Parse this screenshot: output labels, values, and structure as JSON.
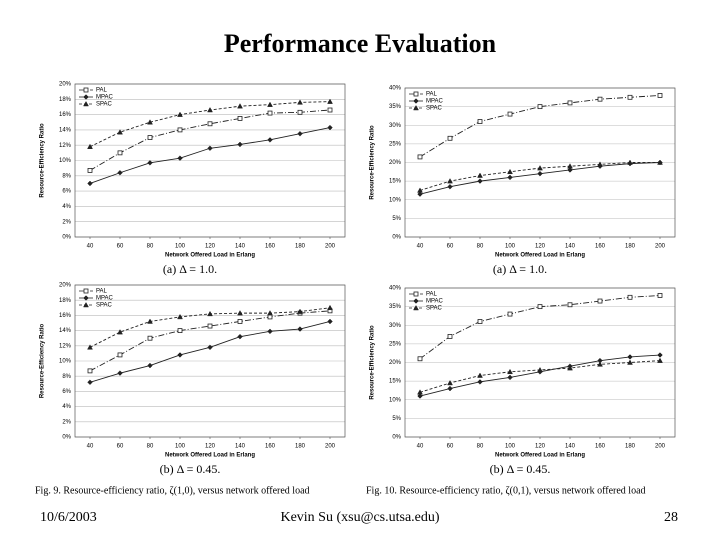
{
  "slide": {
    "title": "Performance Evaluation",
    "date": "10/6/2003",
    "author": "Kevin Su (xsu@cs.utsa.edu)",
    "page": "28"
  },
  "figures": [
    "Fig. 9.  Resource-efficiency ratio, ζ(1,0), versus network offered load",
    "Fig. 10.  Resource-efficiency ratio, ζ(0,1), versus network offered load"
  ],
  "chart_data": [
    {
      "type": "line",
      "caption": "(a) Δ = 1.0.",
      "x_label": "Network Offered Load in Erlang",
      "y_label": "Resource-Efficiency Ratio",
      "x": [
        40,
        60,
        80,
        100,
        120,
        140,
        160,
        180,
        200
      ],
      "xlim": [
        30,
        210
      ],
      "xticks": [
        40,
        60,
        80,
        100,
        120,
        140,
        160,
        180,
        200
      ],
      "ylim": [
        0,
        20
      ],
      "yticks": [
        {
          "value": 0,
          "label": "0%"
        },
        {
          "value": 2,
          "label": "2%"
        },
        {
          "value": 4,
          "label": "4%"
        },
        {
          "value": 6,
          "label": "6%"
        },
        {
          "value": 8,
          "label": "8%"
        },
        {
          "value": 10,
          "label": "10%"
        },
        {
          "value": 12,
          "label": "12%"
        },
        {
          "value": 14,
          "label": "14%"
        },
        {
          "value": 16,
          "label": "16%"
        },
        {
          "value": 18,
          "label": "18%"
        },
        {
          "value": 20,
          "label": "20%"
        }
      ],
      "grid": true,
      "legend": "upper left",
      "series": [
        {
          "name": "PAL",
          "color": "#222222",
          "marker": "square",
          "dash": "6 2 1 2",
          "values": [
            8.7,
            11,
            13,
            14,
            14.8,
            15.5,
            16.2,
            16.3,
            16.6
          ]
        },
        {
          "name": "MPAC",
          "color": "#222222",
          "marker": "diamond",
          "dash": "none",
          "values": [
            7,
            8.4,
            9.7,
            10.3,
            11.6,
            12.1,
            12.7,
            13.5,
            14.3
          ]
        },
        {
          "name": "SPAC",
          "color": "#222222",
          "marker": "triangle",
          "dash": "3 2",
          "values": [
            11.8,
            13.7,
            15,
            16,
            16.6,
            17.1,
            17.3,
            17.6,
            17.7
          ]
        }
      ]
    },
    {
      "type": "line",
      "caption": "(a) Δ = 1.0.",
      "x_label": "Network Offered Load in Erlang",
      "y_label": "Resource-Efficiency Ratio",
      "x": [
        40,
        60,
        80,
        100,
        120,
        140,
        160,
        180,
        200
      ],
      "xlim": [
        30,
        210
      ],
      "xticks": [
        40,
        60,
        80,
        100,
        120,
        140,
        160,
        180,
        200
      ],
      "ylim": [
        0,
        40
      ],
      "yticks": [
        {
          "value": 0,
          "label": "0%"
        },
        {
          "value": 5,
          "label": "5%"
        },
        {
          "value": 10,
          "label": "10%"
        },
        {
          "value": 15,
          "label": "15%"
        },
        {
          "value": 20,
          "label": "20%"
        },
        {
          "value": 25,
          "label": "25%"
        },
        {
          "value": 30,
          "label": "30%"
        },
        {
          "value": 35,
          "label": "35%"
        },
        {
          "value": 40,
          "label": "40%"
        }
      ],
      "grid": true,
      "legend": "upper left",
      "series": [
        {
          "name": "PAL",
          "color": "#222222",
          "marker": "square",
          "dash": "6 2 1 2",
          "values": [
            21.5,
            26.5,
            31,
            33,
            35,
            36,
            37,
            37.5,
            38
          ]
        },
        {
          "name": "MPAC",
          "color": "#222222",
          "marker": "diamond",
          "dash": "none",
          "values": [
            11.5,
            13.5,
            15,
            16,
            17,
            18,
            19,
            19.7,
            20
          ]
        },
        {
          "name": "SPAC",
          "color": "#222222",
          "marker": "triangle",
          "dash": "3 2",
          "values": [
            12.5,
            15,
            16.5,
            17.5,
            18.5,
            19,
            19.5,
            20,
            20
          ]
        }
      ]
    },
    {
      "type": "line",
      "caption": "(b) Δ = 0.45.",
      "x_label": "Network Offered Load in Erlang",
      "y_label": "Resource-Efficiency Ratio",
      "x": [
        40,
        60,
        80,
        100,
        120,
        140,
        160,
        180,
        200
      ],
      "xlim": [
        30,
        210
      ],
      "xticks": [
        40,
        60,
        80,
        100,
        120,
        140,
        160,
        180,
        200
      ],
      "ylim": [
        0,
        20
      ],
      "yticks": [
        {
          "value": 0,
          "label": "0%"
        },
        {
          "value": 2,
          "label": "2%"
        },
        {
          "value": 4,
          "label": "4%"
        },
        {
          "value": 6,
          "label": "6%"
        },
        {
          "value": 8,
          "label": "8%"
        },
        {
          "value": 10,
          "label": "10%"
        },
        {
          "value": 12,
          "label": "12%"
        },
        {
          "value": 14,
          "label": "14%"
        },
        {
          "value": 16,
          "label": "16%"
        },
        {
          "value": 18,
          "label": "18%"
        },
        {
          "value": 20,
          "label": "20%"
        }
      ],
      "grid": true,
      "legend": "upper left",
      "series": [
        {
          "name": "PAL",
          "color": "#222222",
          "marker": "square",
          "dash": "6 2 1 2",
          "values": [
            8.7,
            10.8,
            13,
            14,
            14.6,
            15.2,
            15.8,
            16.3,
            16.6
          ]
        },
        {
          "name": "MPAC",
          "color": "#222222",
          "marker": "diamond",
          "dash": "none",
          "values": [
            7.2,
            8.4,
            9.4,
            10.8,
            11.8,
            13.2,
            13.9,
            14.2,
            15.2
          ]
        },
        {
          "name": "SPAC",
          "color": "#222222",
          "marker": "triangle",
          "dash": "3 2",
          "values": [
            11.8,
            13.8,
            15.2,
            15.8,
            16.2,
            16.3,
            16.3,
            16.5,
            17
          ]
        }
      ]
    },
    {
      "type": "line",
      "caption": "(b) Δ = 0.45.",
      "x_label": "Network Offered Load in Erlang",
      "y_label": "Resource-Efficiency Ratio",
      "x": [
        40,
        60,
        80,
        100,
        120,
        140,
        160,
        180,
        200
      ],
      "xlim": [
        30,
        210
      ],
      "xticks": [
        40,
        60,
        80,
        100,
        120,
        140,
        160,
        180,
        200
      ],
      "ylim": [
        0,
        40
      ],
      "yticks": [
        {
          "value": 0,
          "label": "0%"
        },
        {
          "value": 5,
          "label": "5%"
        },
        {
          "value": 10,
          "label": "10%"
        },
        {
          "value": 15,
          "label": "15%"
        },
        {
          "value": 20,
          "label": "20%"
        },
        {
          "value": 25,
          "label": "25%"
        },
        {
          "value": 30,
          "label": "30%"
        },
        {
          "value": 35,
          "label": "35%"
        },
        {
          "value": 40,
          "label": "40%"
        }
      ],
      "grid": true,
      "legend": "upper left",
      "series": [
        {
          "name": "PAL",
          "color": "#222222",
          "marker": "square",
          "dash": "6 2 1 2",
          "values": [
            21,
            27,
            31,
            33,
            35,
            35.5,
            36.5,
            37.5,
            38
          ]
        },
        {
          "name": "MPAC",
          "color": "#222222",
          "marker": "diamond",
          "dash": "none",
          "values": [
            11,
            13,
            14.8,
            16,
            17.5,
            19,
            20.5,
            21.5,
            22
          ]
        },
        {
          "name": "SPAC",
          "color": "#222222",
          "marker": "triangle",
          "dash": "3 2",
          "values": [
            12,
            14.5,
            16.5,
            17.5,
            18,
            18.5,
            19.5,
            20,
            20.5
          ]
        }
      ]
    }
  ]
}
